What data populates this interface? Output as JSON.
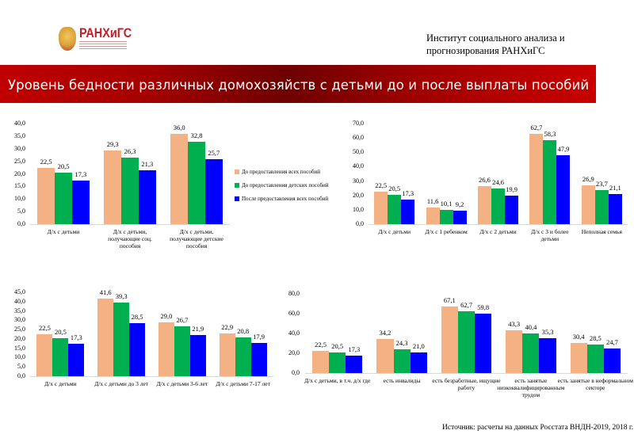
{
  "header": {
    "logo_text": "РАНХиГС",
    "institute": "Институт социального анализа и прогнозирования РАНХиГС",
    "title": "Уровень бедности различных домохозяйств с детьми до и после выплаты пособий"
  },
  "legend": [
    "До предоставления всех пособий",
    "До предоставления детских пособий",
    "После предоставления всех пособий"
  ],
  "colors": [
    "#F4B183",
    "#00B050",
    "#0000FF"
  ],
  "source": "Источник: расчеты на данных Росстата ВНДН-2019, 2018 г.",
  "chart_data": [
    {
      "type": "bar",
      "ylim": [
        0,
        40
      ],
      "ytick_step": 5,
      "legend_position": "right",
      "grid": false,
      "categories": [
        "Д/х с детьми",
        "Д/х с детьми, получающие соц. пособия",
        "Д/х с детьми, получающие детские пособия"
      ],
      "series": [
        {
          "name": "До предоставления всех пособий",
          "values": [
            22.5,
            29.3,
            36.0
          ]
        },
        {
          "name": "До предоставления детских пособий",
          "values": [
            20.5,
            26.3,
            32.8
          ]
        },
        {
          "name": "После предоставления всех пособий",
          "values": [
            17.3,
            21.3,
            25.7
          ]
        }
      ]
    },
    {
      "type": "bar",
      "ylim": [
        0,
        70
      ],
      "ytick_step": 10,
      "grid": false,
      "categories": [
        "Д/х с детьми",
        "Д/х с 1 ребенком",
        "Д/х с 2 детьми",
        "Д/х с 3 и более детьми",
        "Неполная семья"
      ],
      "series": [
        {
          "name": "До предоставления всех пособий",
          "values": [
            22.5,
            11.6,
            26.6,
            62.7,
            26.9
          ]
        },
        {
          "name": "До предоставления детских пособий",
          "values": [
            20.5,
            10.1,
            24.6,
            58.3,
            23.7
          ]
        },
        {
          "name": "После предоставления всех пособий",
          "values": [
            17.3,
            9.2,
            19.9,
            47.9,
            21.1
          ]
        }
      ]
    },
    {
      "type": "bar",
      "ylim": [
        0,
        45
      ],
      "ytick_step": 5,
      "grid": false,
      "categories": [
        "Д/х с детьми",
        "Д/х с детьми до 3 лет",
        "Д/х с детьми 3-6 лет",
        "Д/х с детьми 7-17 лет"
      ],
      "series": [
        {
          "name": "До предоставления всех пособий",
          "values": [
            22.5,
            41.6,
            29.0,
            22.9
          ]
        },
        {
          "name": "До предоставления детских пособий",
          "values": [
            20.5,
            39.3,
            26.7,
            20.8
          ]
        },
        {
          "name": "После предоставления всех пособий",
          "values": [
            17.3,
            28.5,
            21.9,
            17.9
          ]
        }
      ]
    },
    {
      "type": "bar",
      "ylim": [
        0,
        80
      ],
      "ytick_step": 20,
      "grid": false,
      "categories": [
        "Д/х с детьми, в т.ч. д/х где",
        "есть инвалиды",
        "есть безработные, ищущие работу",
        "есть занятые низкоквалифицированным трудом",
        "есть занятые в неформальном секторе"
      ],
      "series": [
        {
          "name": "До предоставления всех пособий",
          "values": [
            22.5,
            34.2,
            67.1,
            43.3,
            30.4
          ]
        },
        {
          "name": "До предоставления детских пособий",
          "values": [
            20.5,
            24.3,
            62.7,
            40.4,
            28.5
          ]
        },
        {
          "name": "После предоставления всех пособий",
          "values": [
            17.3,
            21.0,
            59.8,
            35.3,
            24.7
          ]
        }
      ]
    }
  ]
}
